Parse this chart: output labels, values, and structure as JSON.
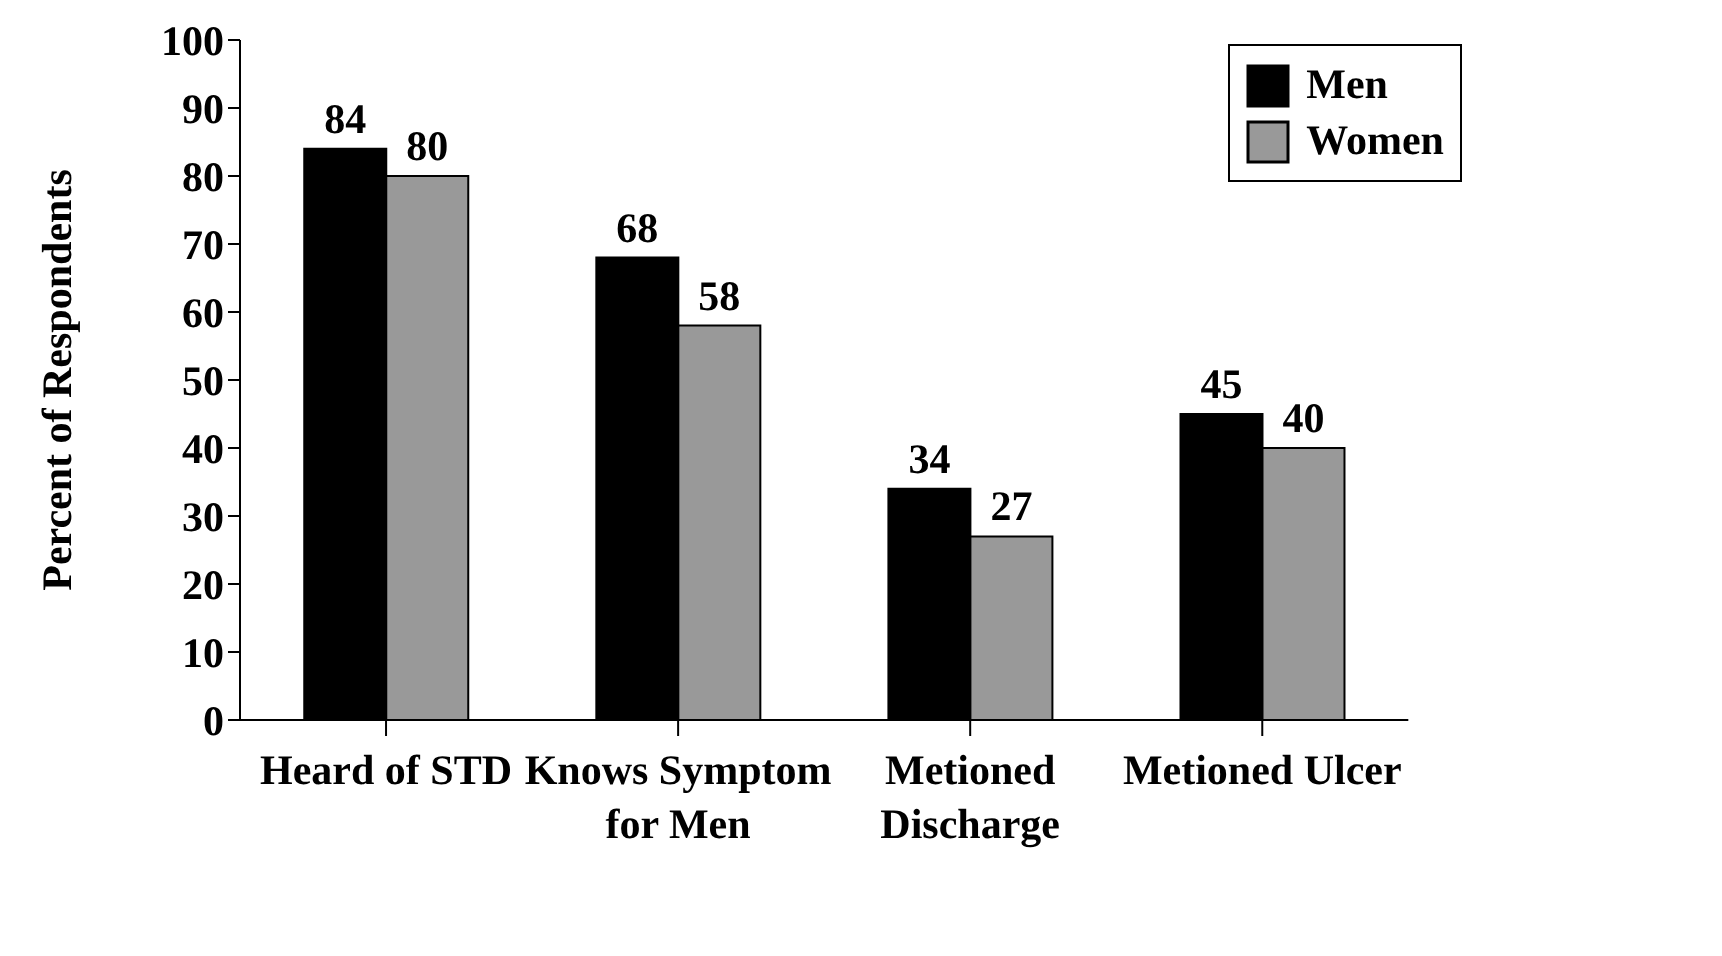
{
  "chart_data": {
    "type": "bar",
    "ylabel": "Percent of Respondents",
    "categories": [
      "Heard of STD",
      "Knows Symptom for Men",
      "Metioned Discharge",
      "Metioned Ulcer"
    ],
    "series": [
      {
        "name": "Men",
        "color": "#000000",
        "values": [
          84,
          68,
          34,
          45
        ]
      },
      {
        "name": "Women",
        "color": "#999999",
        "values": [
          80,
          58,
          27,
          40
        ]
      }
    ],
    "ylim": [
      0,
      100
    ],
    "yticks": [
      0,
      10,
      20,
      30,
      40,
      50,
      60,
      70,
      80,
      90,
      100
    ],
    "grid": false,
    "legend": "top right",
    "data_labels": true
  }
}
